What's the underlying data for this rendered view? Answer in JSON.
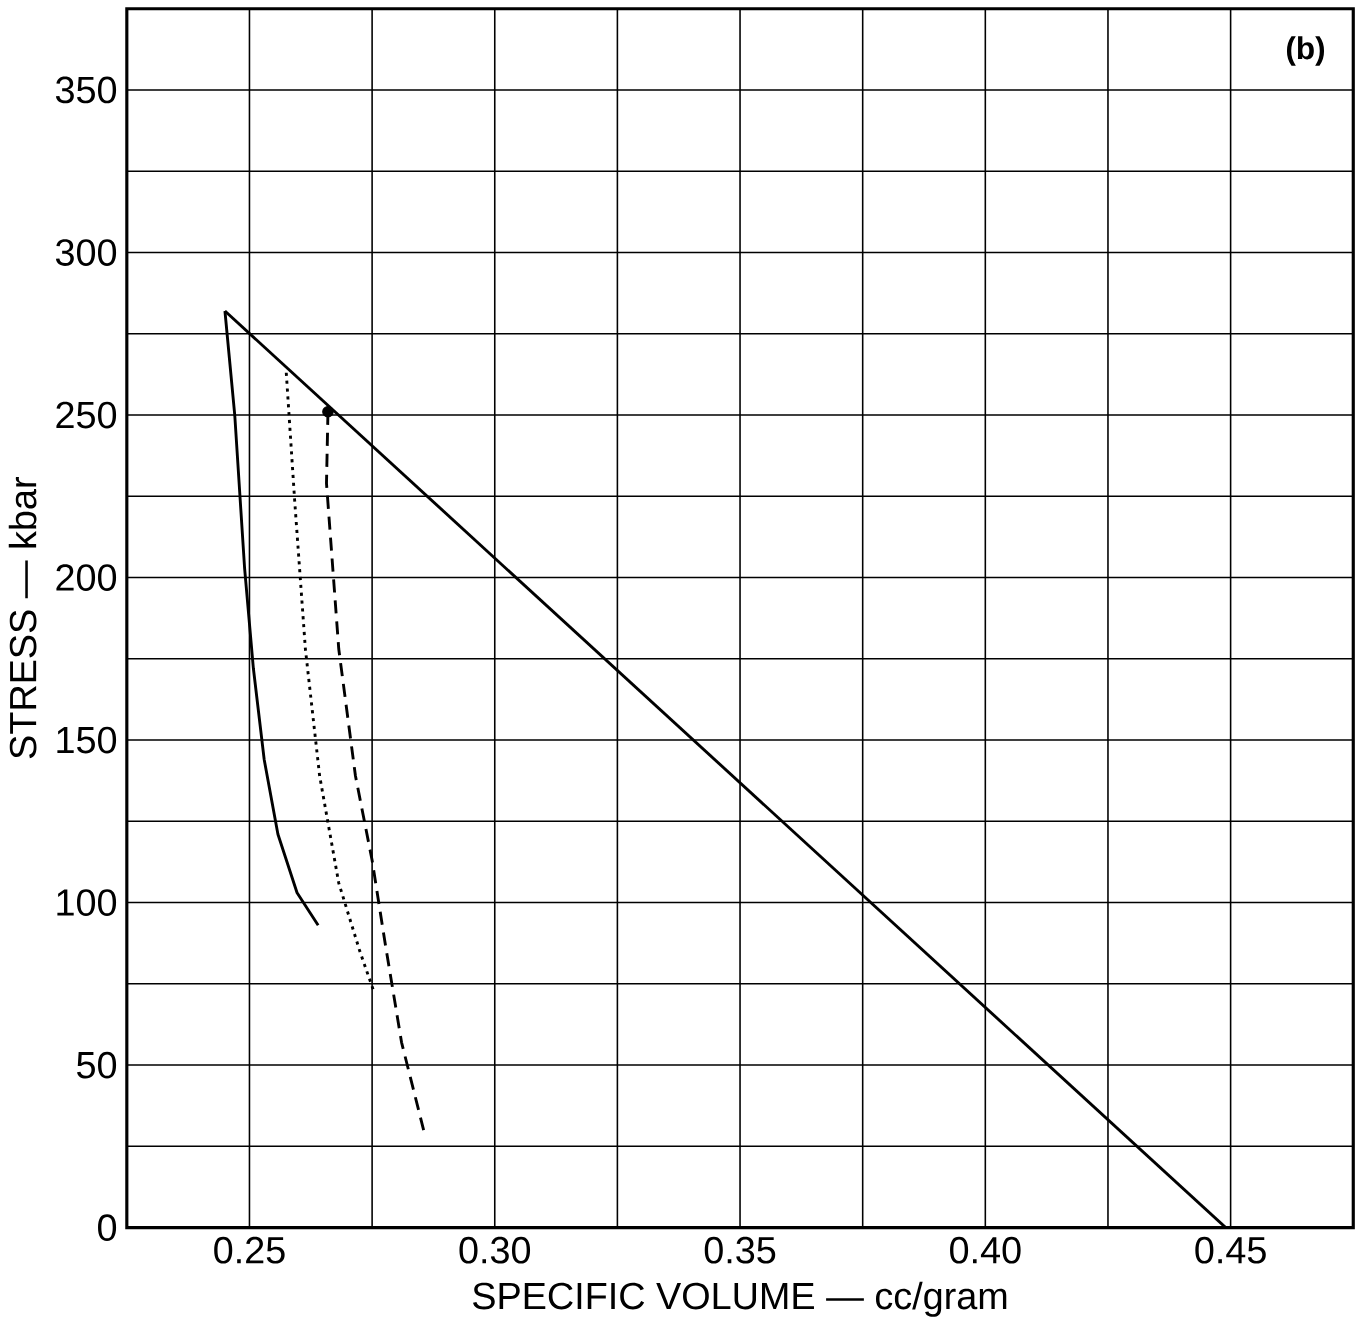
{
  "chart_data": {
    "type": "line",
    "xlabel": "SPECIFIC VOLUME — cc/gram",
    "ylabel": "STRESS — kbar",
    "annotations": [
      "(b)"
    ],
    "xlim": [
      0.225,
      0.475
    ],
    "ylim": [
      0,
      375
    ],
    "xticks": [
      {
        "value": 0.225,
        "label": null
      },
      0.25,
      {
        "value": 0.275,
        "label": null
      },
      {
        "value": 0.3,
        "label": "0.30"
      },
      {
        "value": 0.325,
        "label": null
      },
      0.35,
      {
        "value": 0.375,
        "label": null
      },
      {
        "value": 0.4,
        "label": "0.40"
      },
      {
        "value": 0.425,
        "label": null
      },
      0.45,
      {
        "value": 0.475,
        "label": null
      }
    ],
    "yticks": [
      0,
      {
        "value": 25,
        "label": null
      },
      50,
      {
        "value": 75,
        "label": null
      },
      100,
      {
        "value": 125,
        "label": null
      },
      150,
      {
        "value": 175,
        "label": null
      },
      200,
      {
        "value": 225,
        "label": null
      },
      250,
      {
        "value": 275,
        "label": null
      },
      300,
      {
        "value": 325,
        "label": null
      },
      350,
      {
        "value": 375,
        "label": null
      }
    ],
    "grid": true,
    "marker": "none",
    "series": [
      {
        "color": "#000000",
        "line_style": "solid",
        "x": [
          0.245,
          0.449
        ],
        "values": [
          282,
          0
        ]
      },
      {
        "color": "#000000",
        "line_style": "solid",
        "x": [
          0.245,
          0.247,
          0.249,
          0.2508,
          0.253,
          0.2558,
          0.2597,
          0.264
        ],
        "values": [
          282,
          250,
          203,
          172,
          144,
          121,
          103,
          93
        ]
      },
      {
        "color": "#000000",
        "line_style": "dotted",
        "x": [
          0.2575,
          0.2592,
          0.2614,
          0.2643,
          0.2682,
          0.2725,
          0.2755
        ],
        "values": [
          263,
          224,
          178,
          139,
          106,
          85,
          72
        ]
      },
      {
        "color": "#000000",
        "line_style": "dashed",
        "x": [
          0.266,
          0.2657,
          0.2682,
          0.2716,
          0.275,
          0.2776,
          0.281,
          0.2855
        ],
        "values": [
          251,
          229,
          178,
          139,
          113,
          88,
          57,
          30
        ]
      },
      {
        "type": "scatter",
        "color": "#000000",
        "marker": "circle",
        "x": [
          0.266
        ],
        "values": [
          251
        ]
      }
    ]
  }
}
